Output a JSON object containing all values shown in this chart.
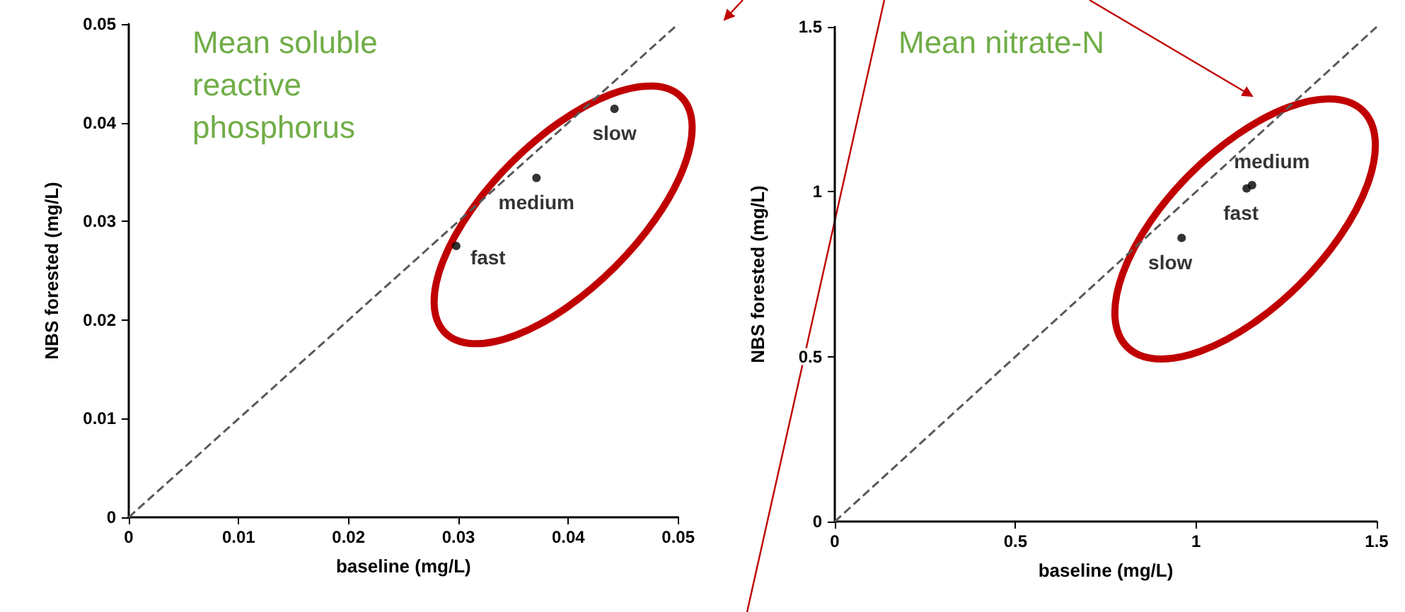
{
  "chart_data": [
    {
      "type": "scatter",
      "title": "Mean soluble reactive phosphorus",
      "xlabel": "baseline (mg/L)",
      "ylabel": "NBS forested (mg/L)",
      "xlim": [
        0,
        0.05
      ],
      "xticks": [
        0,
        0.01,
        0.02,
        0.03,
        0.04,
        0.05
      ],
      "ylim": [
        0,
        0.05
      ],
      "yticks": [
        0,
        0.01,
        0.02,
        0.03,
        0.04,
        0.05
      ],
      "grid": false,
      "legend": false,
      "series": [
        {
          "name": "slow",
          "color": "#000000",
          "marker": "circle",
          "x": [
            0.0442
          ],
          "values": [
            0.0414
          ]
        },
        {
          "name": "medium",
          "color": "#000000",
          "marker": "circle",
          "x": [
            0.0371
          ],
          "values": [
            0.0344
          ]
        },
        {
          "name": "fast",
          "color": "#000000",
          "marker": "circle",
          "x": [
            0.0298
          ],
          "values": [
            0.0275
          ]
        },
        {
          "type": "line",
          "color": "#595959",
          "marker": "none",
          "line_style": "dashed",
          "x": [
            0,
            0.05
          ],
          "values": [
            0,
            0.05
          ]
        }
      ]
    },
    {
      "type": "scatter",
      "title": "Mean nitrate-N",
      "xlabel": "baseline (mg/L)",
      "ylabel": "NBS forested (mg/L)",
      "xlim": [
        0,
        1.5
      ],
      "xticks": [
        0,
        0.5,
        1,
        1.5
      ],
      "ylim": [
        0,
        1.5
      ],
      "yticks": [
        0,
        0.5,
        1,
        1.5
      ],
      "grid": false,
      "legend": false,
      "series": [
        {
          "name": "slow",
          "color": "#000000",
          "marker": "circle",
          "x": [
            0.96
          ],
          "values": [
            0.86
          ]
        },
        {
          "name": "fast",
          "color": "#000000",
          "marker": "circle",
          "x": [
            1.14
          ],
          "values": [
            1.01
          ]
        },
        {
          "name": "medium",
          "color": "#000000",
          "marker": "circle",
          "x": [
            1.155
          ],
          "values": [
            1.02
          ]
        },
        {
          "type": "line",
          "color": "#595959",
          "marker": "none",
          "line_style": "dashed",
          "x": [
            0,
            1.5
          ],
          "values": [
            0,
            1.5
          ]
        }
      ]
    }
  ]
}
